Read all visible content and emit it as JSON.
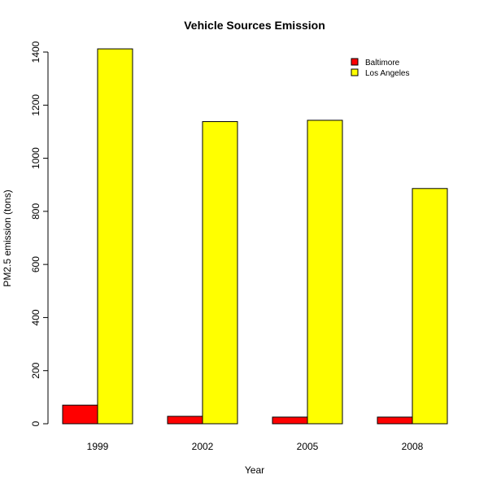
{
  "chart_data": {
    "type": "bar",
    "title": "Vehicle Sources Emission",
    "xlabel": "Year",
    "ylabel": "PM2.5 emission (tons)",
    "categories": [
      "1999",
      "2002",
      "2005",
      "2008"
    ],
    "series": [
      {
        "name": "Baltimore",
        "color": "#ff0000",
        "values": [
          70,
          28,
          25,
          25
        ]
      },
      {
        "name": "Los Angeles",
        "color": "#ffff00",
        "values": [
          1412,
          1138,
          1143,
          886
        ]
      }
    ],
    "ylim": [
      0,
      1400
    ],
    "yticks": [
      "0",
      "200",
      "400",
      "600",
      "800",
      "1000",
      "1200",
      "1400"
    ],
    "grid": false,
    "legend_position": "top-right"
  }
}
